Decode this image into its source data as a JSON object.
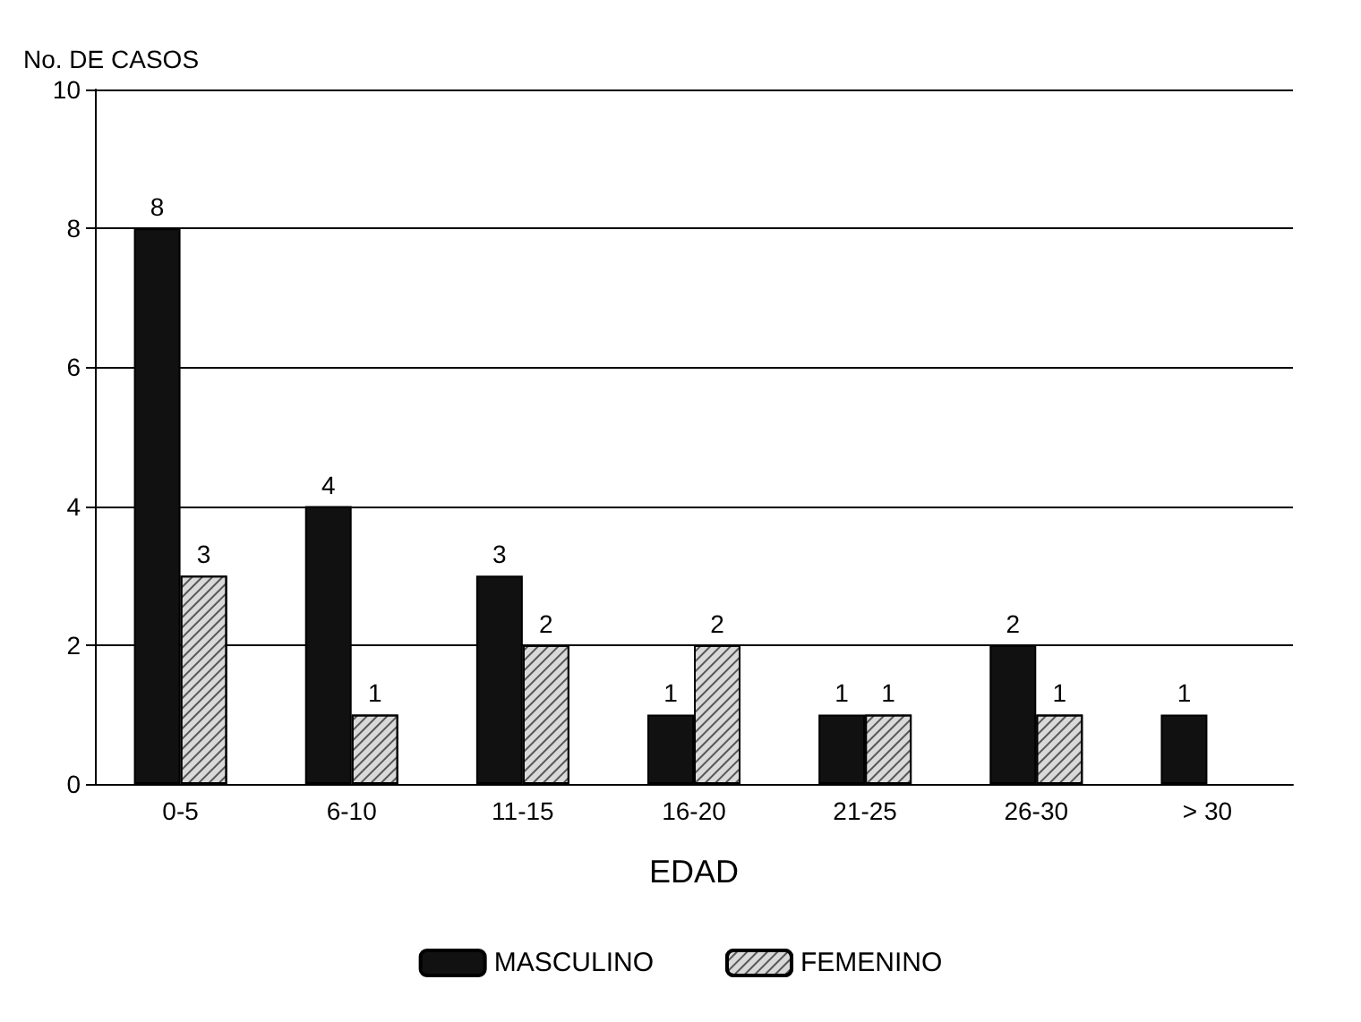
{
  "chart_data": {
    "type": "bar",
    "ylabel": "No. DE CASOS",
    "xlabel": "EDAD",
    "categories": [
      "0-5",
      "6-10",
      "11-15",
      "16-20",
      "21-25",
      "26-30",
      "> 30"
    ],
    "series": [
      {
        "name": "MASCULINO",
        "color": "#111111",
        "values": [
          8,
          4,
          3,
          1,
          1,
          2,
          1
        ]
      },
      {
        "name": "FEMENINO",
        "color": "#d9d9d9",
        "values": [
          3,
          1,
          2,
          2,
          1,
          1,
          null
        ]
      }
    ],
    "ylim": [
      0,
      10
    ],
    "yticks": [
      0,
      2,
      4,
      6,
      8,
      10
    ],
    "grid": "y",
    "legend": "bottom",
    "data_labels": true
  }
}
